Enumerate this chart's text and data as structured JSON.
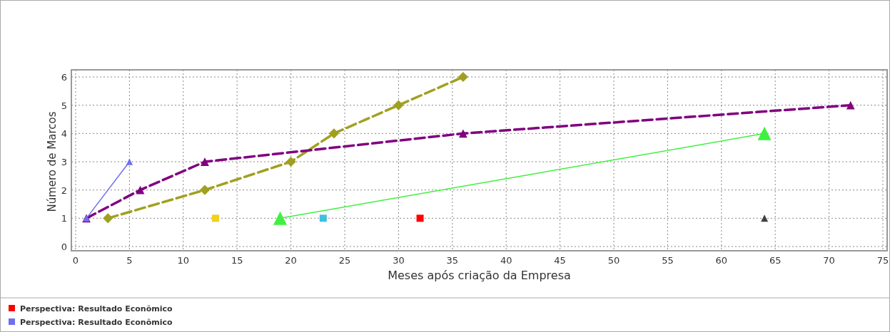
{
  "chart_data": {
    "type": "line",
    "xlabel": "Meses após criação da Empresa",
    "ylabel": "Número de Marcos",
    "xlim": [
      0,
      75
    ],
    "xticks": [
      0,
      5,
      10,
      15,
      20,
      25,
      30,
      35,
      40,
      45,
      50,
      55,
      60,
      65,
      70,
      75
    ],
    "ylim": [
      0,
      6
    ],
    "yticks": [
      0,
      1,
      2,
      3,
      4,
      5,
      6
    ],
    "grid": true,
    "legend": "bottom",
    "series": [
      {
        "name": "Perspectiva: Resultado Econômico",
        "color": "#ff0000",
        "type": "scatter",
        "marker": "square",
        "x": [
          32
        ],
        "values": [
          1
        ]
      },
      {
        "name": "Perspectiva: Resultado Econômico",
        "color": "#6f6ff0",
        "marker": "triangle",
        "line_style": "solid",
        "x": [
          1,
          5
        ],
        "values": [
          1,
          3
        ]
      },
      {
        "color": "#800080",
        "marker": "triangle",
        "line_style": "dashed",
        "x": [
          1,
          6,
          12,
          36,
          72
        ],
        "values": [
          1,
          2,
          3,
          4,
          5
        ]
      },
      {
        "color": "#a0a020",
        "marker": "diamond",
        "line_style": "dashed",
        "x": [
          3,
          12,
          20,
          24,
          30,
          36
        ],
        "values": [
          1,
          2,
          3,
          4,
          5,
          6
        ]
      },
      {
        "color": "#f0d020",
        "type": "scatter",
        "marker": "square",
        "x": [
          13
        ],
        "values": [
          1
        ]
      },
      {
        "color": "#40f040",
        "marker": "triangle",
        "line_style": "solid",
        "x": [
          19,
          64
        ],
        "values": [
          1,
          4
        ]
      },
      {
        "color": "#40c0e0",
        "type": "scatter",
        "marker": "square",
        "x": [
          23
        ],
        "values": [
          1
        ]
      },
      {
        "color": "#404040",
        "type": "scatter",
        "marker": "triangle",
        "x": [
          64
        ],
        "values": [
          1
        ]
      }
    ]
  }
}
